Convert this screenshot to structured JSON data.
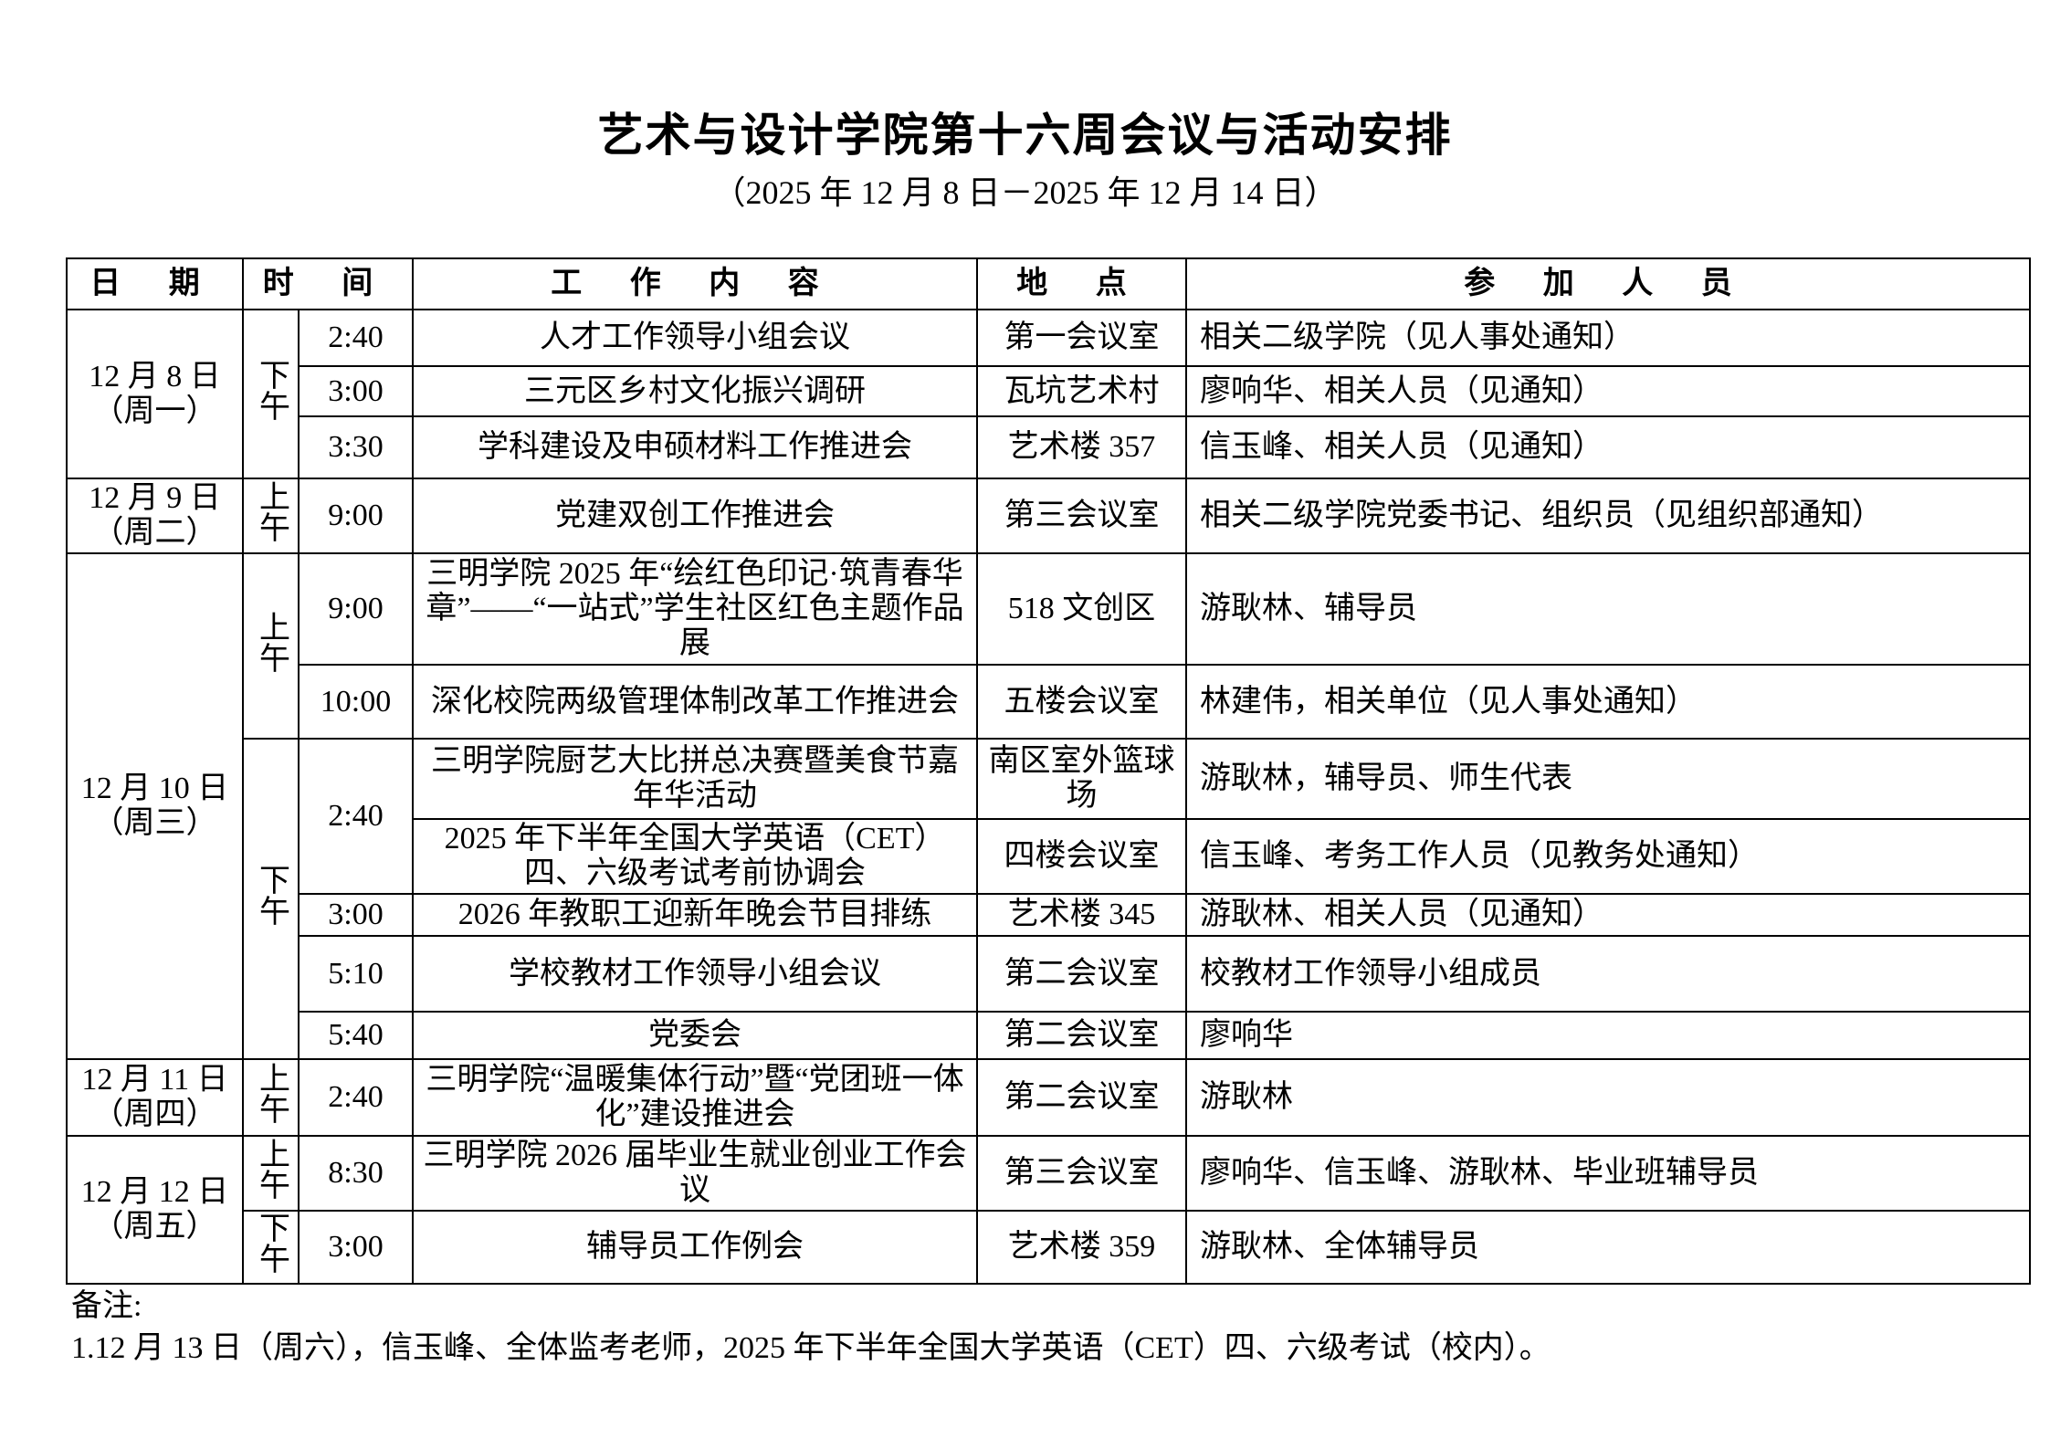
{
  "title": "艺术与设计学院第十六周会议与活动安排",
  "subtitle": "（2025 年 12 月 8 日－2025 年 12 月 14 日）",
  "headers": [
    "日 期",
    "时 间",
    "工 作 内 容",
    "地 点",
    "参 加 人 员"
  ],
  "days": [
    {
      "date": "12 月 8 日",
      "weekday": "（周一）",
      "blocks": [
        {
          "period": "下午",
          "slots": [
            {
              "time": "2:40",
              "items": [
                {
                  "content": "人才工作领导小组会议",
                  "location": "第一会议室",
                  "attendees": "相关二级学院（见人事处通知）"
                }
              ]
            },
            {
              "time": "3:00",
              "items": [
                {
                  "content": "三元区乡村文化振兴调研",
                  "location": "瓦坑艺术村",
                  "attendees": "廖响华、相关人员（见通知）"
                }
              ]
            },
            {
              "time": "3:30",
              "items": [
                {
                  "content": "学科建设及申硕材料工作推进会",
                  "location": "艺术楼 357",
                  "attendees": "信玉峰、相关人员（见通知）"
                }
              ]
            }
          ]
        }
      ]
    },
    {
      "date": "12 月 9 日",
      "weekday": "（周二）",
      "blocks": [
        {
          "period": "上午",
          "slots": [
            {
              "time": "9:00",
              "items": [
                {
                  "content": "党建双创工作推进会",
                  "location": "第三会议室",
                  "attendees": "相关二级学院党委书记、组织员（见组织部通知）"
                }
              ]
            }
          ]
        }
      ]
    },
    {
      "date": "12 月 10 日",
      "weekday": "（周三）",
      "blocks": [
        {
          "period": "上午",
          "slots": [
            {
              "time": "9:00",
              "items": [
                {
                  "content": "三明学院 2025 年“绘红色印记·筑青春华章”——“一站式”学生社区红色主题作品展",
                  "location": "518 文创区",
                  "attendees": "游耿林、辅导员"
                }
              ]
            },
            {
              "time": "10:00",
              "items": [
                {
                  "content": "深化校院两级管理体制改革工作推进会",
                  "location": "五楼会议室",
                  "attendees": "林建伟，相关单位（见人事处通知）"
                }
              ]
            }
          ]
        },
        {
          "period": "下午",
          "slots": [
            {
              "time": "2:40",
              "items": [
                {
                  "content": "三明学院厨艺大比拼总决赛暨美食节嘉年华活动",
                  "location": "南区室外篮球场",
                  "attendees": "游耿林，辅导员、师生代表"
                },
                {
                  "content": "2025 年下半年全国大学英语（CET）四、六级考试考前协调会",
                  "location": "四楼会议室",
                  "attendees": "信玉峰、考务工作人员（见教务处通知）"
                }
              ]
            },
            {
              "time": "3:00",
              "items": [
                {
                  "content": "2026 年教职工迎新年晚会节目排练",
                  "location": "艺术楼 345",
                  "attendees": "游耿林、相关人员（见通知）"
                }
              ]
            },
            {
              "time": "5:10",
              "items": [
                {
                  "content": "学校教材工作领导小组会议",
                  "location": "第二会议室",
                  "attendees": "校教材工作领导小组成员"
                }
              ]
            },
            {
              "time": "5:40",
              "items": [
                {
                  "content": "党委会",
                  "location": "第二会议室",
                  "attendees": "廖响华"
                }
              ]
            }
          ]
        }
      ]
    },
    {
      "date": "12 月 11 日",
      "weekday": "（周四）",
      "blocks": [
        {
          "period": "上午",
          "slots": [
            {
              "time": "2:40",
              "items": [
                {
                  "content": "三明学院“温暖集体行动”暨“党团班一体化”建设推进会",
                  "location": "第二会议室",
                  "attendees": "游耿林"
                }
              ]
            }
          ]
        }
      ]
    },
    {
      "date": "12 月 12 日",
      "weekday": "（周五）",
      "blocks": [
        {
          "period": "上午",
          "slots": [
            {
              "time": "8:30",
              "items": [
                {
                  "content": "三明学院 2026 届毕业生就业创业工作会议",
                  "location": "第三会议室",
                  "attendees": "廖响华、信玉峰、游耿林、毕业班辅导员"
                }
              ]
            }
          ]
        },
        {
          "period": "下午",
          "slots": [
            {
              "time": "3:00",
              "items": [
                {
                  "content": "辅导员工作例会",
                  "location": "艺术楼 359",
                  "attendees": "游耿林、全体辅导员"
                }
              ]
            }
          ]
        }
      ]
    }
  ],
  "notes": {
    "label": "备注:",
    "items": [
      "1.12 月 13 日（周六），信玉峰、全体监考老师，2025 年下半年全国大学英语（CET）四、六级考试（校内）。"
    ]
  }
}
